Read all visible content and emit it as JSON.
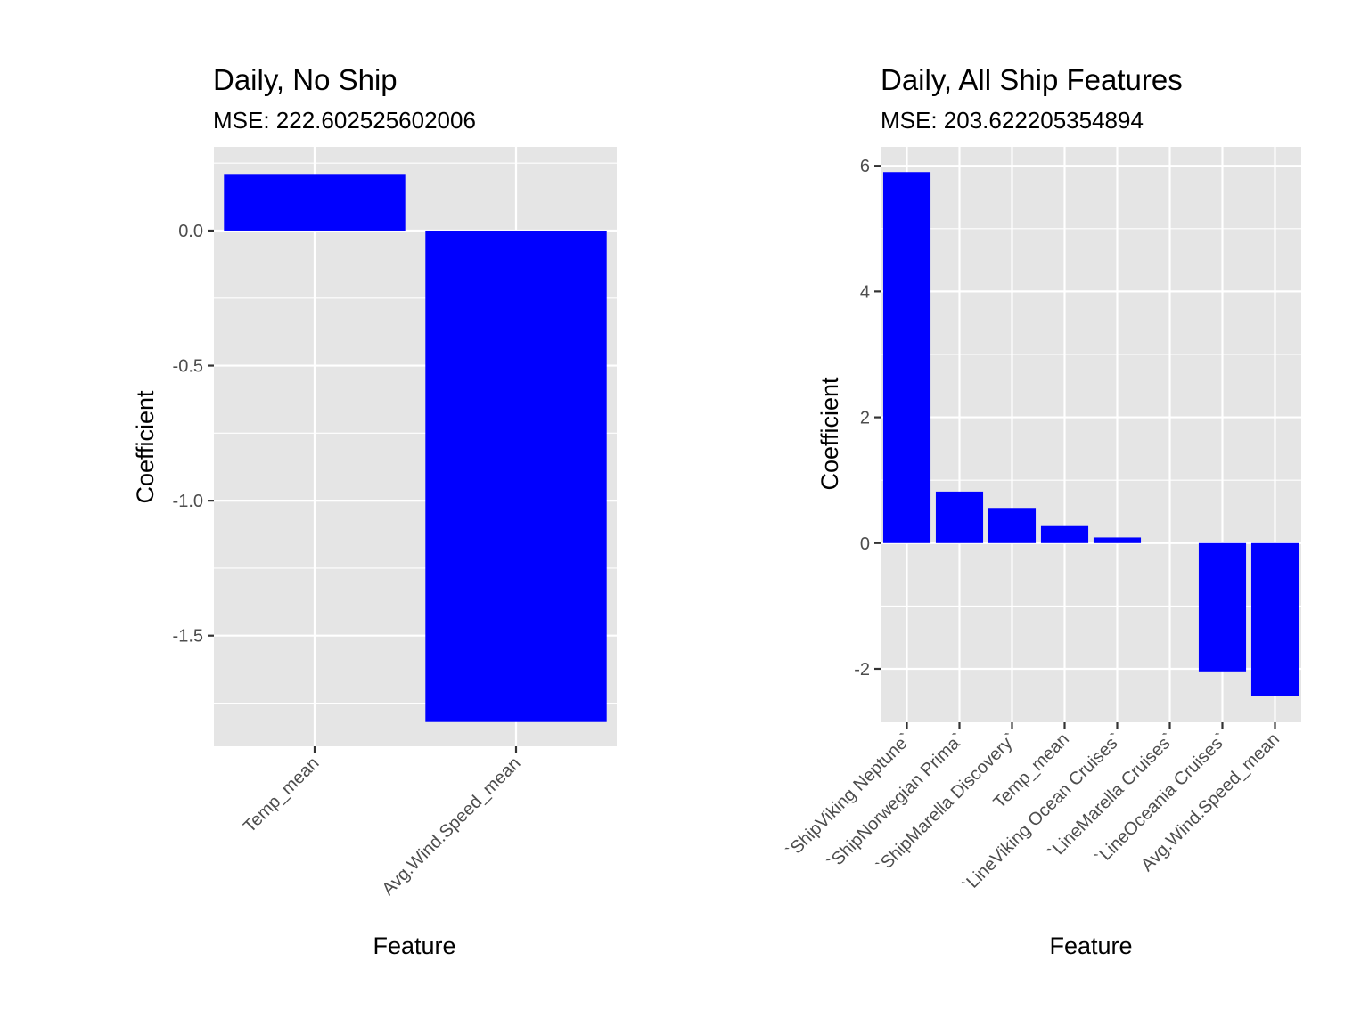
{
  "chart_data": [
    {
      "type": "bar",
      "title": "Daily, No Ship",
      "subtitle": "MSE: 222.602525602006",
      "xlabel": "Feature",
      "ylabel": "Coefficient",
      "categories": [
        "Temp_mean",
        "Avg.Wind.Speed_mean"
      ],
      "values": [
        0.21,
        -1.82
      ],
      "ylim": [
        -1.91,
        0.31
      ],
      "yticks": [
        0.0,
        -0.5,
        -1.0,
        -1.5
      ],
      "ytick_labels": [
        "0.0",
        "-0.5",
        "-1.0",
        "-1.5"
      ],
      "bar_color": "#0000ff",
      "panel_color": "#e5e5e5",
      "grid": true
    },
    {
      "type": "bar",
      "title": "Daily, All Ship Features",
      "subtitle": "MSE: 203.622205354894",
      "xlabel": "Feature",
      "ylabel": "Coefficient",
      "categories": [
        "`ShipViking Neptune`",
        "`ShipNorwegian Prima`",
        "`ShipMarella Discovery`",
        "Temp_mean",
        "`LineViking Ocean Cruises`",
        "`LineMarella Cruises`",
        "`LineOceania Cruises`",
        "Avg.Wind.Speed_mean"
      ],
      "values": [
        5.9,
        0.82,
        0.56,
        0.27,
        0.09,
        0.0,
        -2.04,
        -2.43
      ],
      "ylim": [
        -2.85,
        6.3
      ],
      "yticks": [
        6,
        4,
        2,
        0,
        -2
      ],
      "ytick_labels": [
        "6",
        "4",
        "2",
        "0",
        "-2"
      ],
      "bar_color": "#0000ff",
      "panel_color": "#e5e5e5",
      "grid": true
    }
  ]
}
